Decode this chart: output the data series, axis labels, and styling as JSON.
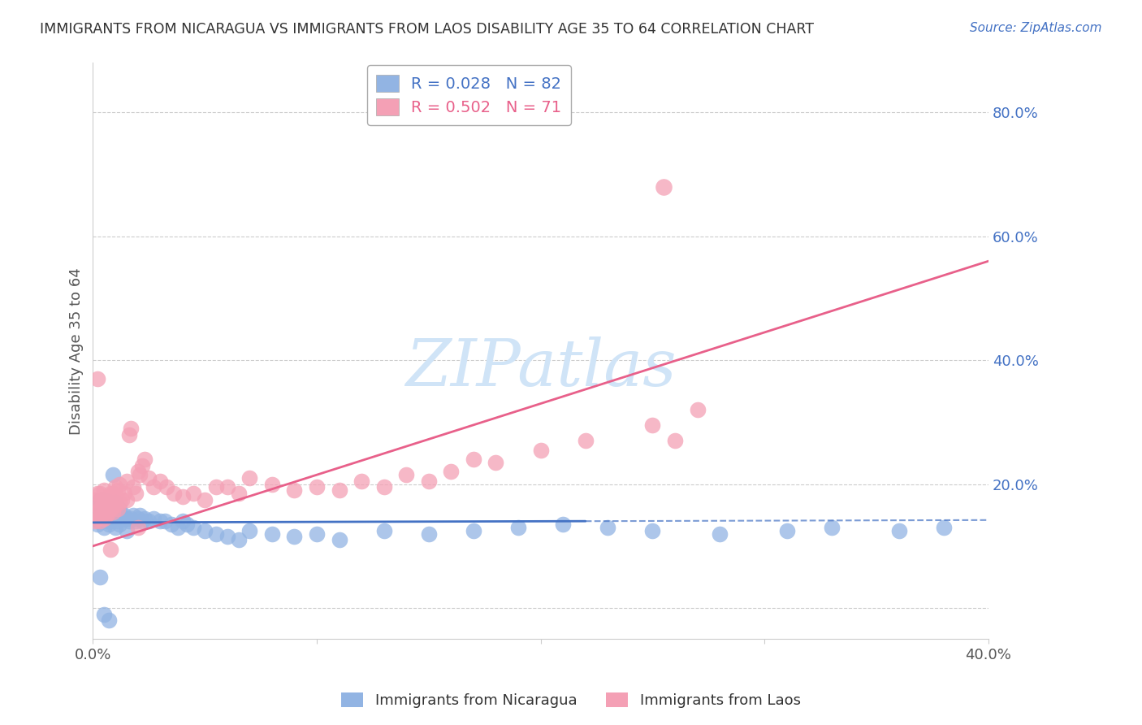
{
  "title": "IMMIGRANTS FROM NICARAGUA VS IMMIGRANTS FROM LAOS DISABILITY AGE 35 TO 64 CORRELATION CHART",
  "source": "Source: ZipAtlas.com",
  "ylabel": "Disability Age 35 to 64",
  "xlim": [
    0.0,
    0.4
  ],
  "ylim": [
    -0.05,
    0.88
  ],
  "yticks": [
    0.0,
    0.2,
    0.4,
    0.6,
    0.8
  ],
  "ytick_labels": [
    "",
    "20.0%",
    "40.0%",
    "60.0%",
    "80.0%"
  ],
  "color_nicaragua": "#92b4e3",
  "color_laos": "#f4a0b5",
  "line_color_nicaragua": "#4472c4",
  "line_color_laos": "#e8608a",
  "grid_color": "#cccccc",
  "nicaragua_R": 0.028,
  "nicaragua_N": 82,
  "laos_R": 0.502,
  "laos_N": 71,
  "watermark_color": "#d0e4f7",
  "title_color": "#333333",
  "source_color": "#4472c4",
  "axis_label_color": "#4472c4",
  "ylabel_color": "#555555",
  "nicaragua_x": [
    0.001,
    0.001,
    0.001,
    0.002,
    0.002,
    0.002,
    0.002,
    0.003,
    0.003,
    0.003,
    0.003,
    0.004,
    0.004,
    0.004,
    0.005,
    0.005,
    0.005,
    0.005,
    0.006,
    0.006,
    0.006,
    0.007,
    0.007,
    0.007,
    0.008,
    0.008,
    0.008,
    0.009,
    0.009,
    0.01,
    0.01,
    0.01,
    0.011,
    0.011,
    0.012,
    0.012,
    0.013,
    0.014,
    0.015,
    0.015,
    0.016,
    0.017,
    0.018,
    0.019,
    0.02,
    0.021,
    0.022,
    0.023,
    0.025,
    0.027,
    0.03,
    0.032,
    0.035,
    0.038,
    0.04,
    0.042,
    0.045,
    0.05,
    0.055,
    0.06,
    0.065,
    0.07,
    0.08,
    0.09,
    0.1,
    0.11,
    0.13,
    0.15,
    0.17,
    0.19,
    0.21,
    0.23,
    0.25,
    0.28,
    0.31,
    0.33,
    0.36,
    0.38,
    0.005,
    0.007,
    0.009,
    0.003
  ],
  "nicaragua_y": [
    0.145,
    0.155,
    0.165,
    0.135,
    0.145,
    0.16,
    0.17,
    0.14,
    0.15,
    0.16,
    0.175,
    0.145,
    0.16,
    0.175,
    0.13,
    0.145,
    0.16,
    0.175,
    0.14,
    0.155,
    0.17,
    0.135,
    0.15,
    0.165,
    0.14,
    0.155,
    0.17,
    0.145,
    0.16,
    0.13,
    0.15,
    0.17,
    0.14,
    0.155,
    0.135,
    0.16,
    0.145,
    0.15,
    0.125,
    0.145,
    0.14,
    0.145,
    0.15,
    0.14,
    0.145,
    0.15,
    0.14,
    0.145,
    0.14,
    0.145,
    0.14,
    0.14,
    0.135,
    0.13,
    0.14,
    0.135,
    0.13,
    0.125,
    0.12,
    0.115,
    0.11,
    0.125,
    0.12,
    0.115,
    0.12,
    0.11,
    0.125,
    0.12,
    0.125,
    0.13,
    0.135,
    0.13,
    0.125,
    0.12,
    0.125,
    0.13,
    0.125,
    0.13,
    -0.01,
    -0.02,
    0.215,
    0.05
  ],
  "laos_x": [
    0.001,
    0.001,
    0.001,
    0.002,
    0.002,
    0.002,
    0.003,
    0.003,
    0.003,
    0.004,
    0.004,
    0.005,
    0.005,
    0.005,
    0.006,
    0.006,
    0.007,
    0.007,
    0.008,
    0.008,
    0.009,
    0.009,
    0.01,
    0.01,
    0.011,
    0.011,
    0.012,
    0.012,
    0.013,
    0.014,
    0.015,
    0.015,
    0.016,
    0.017,
    0.018,
    0.019,
    0.02,
    0.021,
    0.022,
    0.023,
    0.025,
    0.027,
    0.03,
    0.033,
    0.036,
    0.04,
    0.045,
    0.05,
    0.055,
    0.06,
    0.065,
    0.07,
    0.08,
    0.09,
    0.1,
    0.11,
    0.12,
    0.13,
    0.14,
    0.15,
    0.16,
    0.17,
    0.18,
    0.2,
    0.22,
    0.25,
    0.27,
    0.26,
    0.008,
    0.02,
    0.002
  ],
  "laos_y": [
    0.14,
    0.155,
    0.175,
    0.145,
    0.165,
    0.185,
    0.14,
    0.16,
    0.185,
    0.15,
    0.175,
    0.145,
    0.165,
    0.19,
    0.15,
    0.175,
    0.155,
    0.18,
    0.16,
    0.185,
    0.155,
    0.185,
    0.165,
    0.195,
    0.16,
    0.19,
    0.17,
    0.2,
    0.175,
    0.185,
    0.175,
    0.205,
    0.28,
    0.29,
    0.195,
    0.185,
    0.22,
    0.215,
    0.23,
    0.24,
    0.21,
    0.195,
    0.205,
    0.195,
    0.185,
    0.18,
    0.185,
    0.175,
    0.195,
    0.195,
    0.185,
    0.21,
    0.2,
    0.19,
    0.195,
    0.19,
    0.205,
    0.195,
    0.215,
    0.205,
    0.22,
    0.24,
    0.235,
    0.255,
    0.27,
    0.295,
    0.32,
    0.27,
    0.095,
    0.13,
    0.37
  ]
}
